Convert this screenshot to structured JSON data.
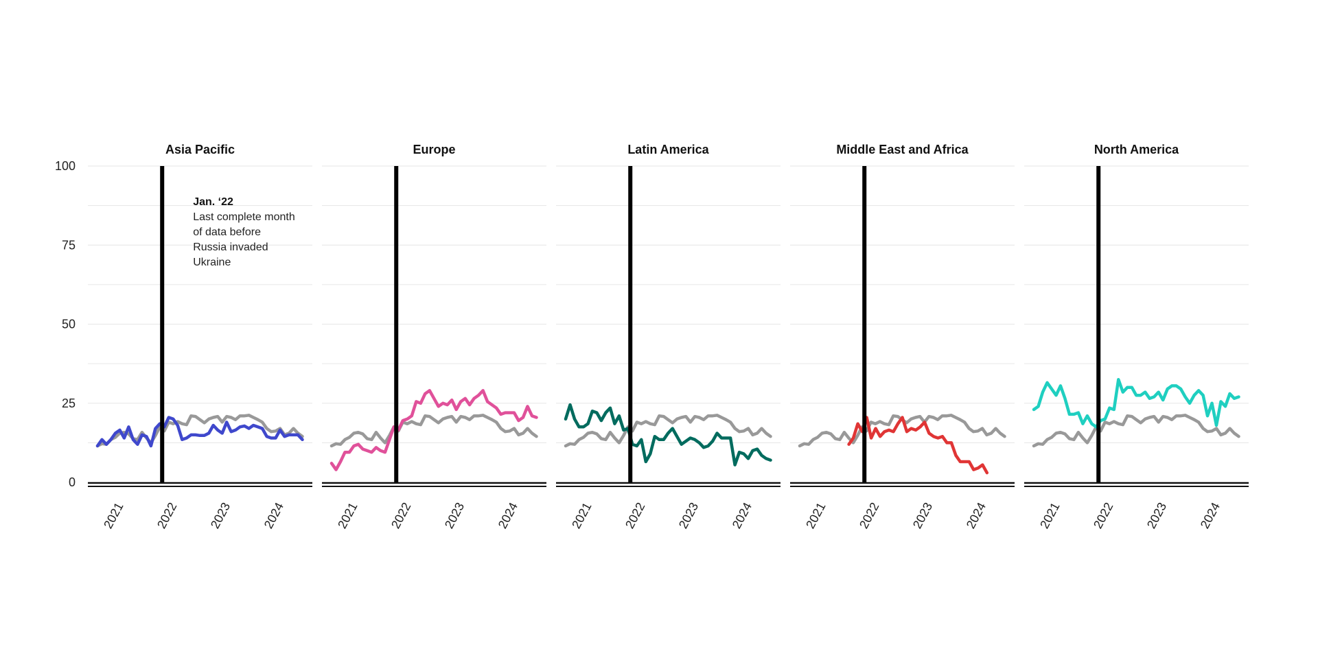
{
  "chart_data": {
    "type": "line",
    "ylim": [
      0,
      100
    ],
    "yticks": [
      0,
      25,
      50,
      75,
      100
    ],
    "xlim": [
      2020.65,
      2024.85
    ],
    "xticks": [
      2021,
      2022,
      2023,
      2024
    ],
    "xtick_labels": [
      "2021",
      "2022",
      "2023",
      "2024"
    ],
    "marker_x": 2022.04,
    "annotation": {
      "title": "Jan. ‘22",
      "lines": [
        "Last complete month",
        "of data before",
        "Russia invaded",
        "Ukraine"
      ]
    },
    "global_series": {
      "color": "#999999",
      "x_start": 2020.83,
      "step_months": 1,
      "values": [
        11.5,
        12.2,
        12.0,
        13.5,
        14.2,
        15.5,
        15.8,
        15.3,
        13.8,
        13.5,
        15.8,
        14.0,
        12.5,
        14.8,
        17.5,
        16.2,
        19.0,
        18.5,
        19.2,
        18.5,
        18.2,
        21.0,
        20.8,
        19.8,
        18.8,
        20.0,
        20.5,
        20.8,
        19.0,
        20.8,
        20.5,
        19.8,
        21.0,
        21.0,
        21.2,
        20.5,
        19.8,
        19.0,
        17.0,
        16.0,
        16.2,
        17.0,
        15.0,
        15.5,
        17.0,
        15.5,
        14.5
      ]
    },
    "panels": [
      {
        "title": "Asia Pacific",
        "color": "#3f48cc",
        "x_start": 2020.83,
        "step_months": 1,
        "values": [
          11.5,
          13.5,
          12.0,
          13.5,
          15.5,
          16.5,
          14.0,
          17.5,
          13.5,
          12.0,
          15.0,
          14.5,
          11.5,
          17.0,
          18.5,
          17.5,
          20.5,
          20.0,
          18.0,
          13.5,
          14.0,
          15.0,
          15.0,
          14.8,
          14.8,
          15.5,
          18.0,
          16.5,
          15.5,
          19.0,
          16.0,
          16.5,
          17.5,
          17.8,
          17.0,
          18.0,
          17.5,
          17.0,
          14.5,
          14.0,
          14.0,
          16.5,
          14.5,
          15.0,
          15.0,
          15.0,
          13.5
        ]
      },
      {
        "title": "Europe",
        "color": "#e0519a",
        "x_start": 2020.83,
        "step_months": 1,
        "values": [
          6.0,
          4.0,
          6.5,
          9.5,
          9.5,
          11.5,
          12.0,
          10.5,
          10.0,
          9.5,
          11.0,
          10.0,
          9.5,
          13.5,
          17.5,
          16.5,
          19.5,
          20.0,
          21.0,
          25.5,
          25.0,
          28.0,
          29.0,
          26.5,
          24.0,
          25.0,
          24.5,
          26.0,
          23.0,
          25.5,
          26.5,
          24.5,
          26.5,
          27.5,
          29.0,
          25.5,
          24.5,
          23.5,
          21.5,
          22.0,
          22.0,
          22.0,
          19.5,
          20.5,
          24.0,
          21.0,
          20.5
        ]
      },
      {
        "title": "Latin America",
        "color": "#006b5e",
        "x_start": 2020.83,
        "step_months": 1,
        "values": [
          20.0,
          24.5,
          20.0,
          17.5,
          17.5,
          18.5,
          22.5,
          22.0,
          19.5,
          22.0,
          23.5,
          18.5,
          21.0,
          16.5,
          17.0,
          12.0,
          11.5,
          13.5,
          6.5,
          9.0,
          14.5,
          13.5,
          13.5,
          15.5,
          17.0,
          14.5,
          12.0,
          13.0,
          14.0,
          13.5,
          12.5,
          11.0,
          11.5,
          13.0,
          15.5,
          14.0,
          14.0,
          14.0,
          5.5,
          9.5,
          9.0,
          7.5,
          10.0,
          10.5,
          8.5,
          7.5,
          7.0
        ]
      },
      {
        "title": "Middle East and Africa",
        "color": "#e03535",
        "x_start": 2021.75,
        "step_months": 1,
        "values": [
          12.0,
          14.0,
          18.5,
          16.0,
          20.5,
          14.0,
          17.0,
          14.5,
          16.0,
          16.5,
          16.0,
          18.5,
          20.5,
          16.0,
          17.0,
          16.5,
          17.5,
          19.0,
          15.5,
          14.5,
          14.0,
          14.5,
          12.5,
          12.5,
          8.5,
          6.5,
          6.5,
          6.5,
          4.0,
          4.5,
          5.5,
          3.0
        ]
      },
      {
        "title": "North America",
        "color": "#1fcfc0",
        "x_start": 2020.83,
        "step_months": 1,
        "values": [
          23.0,
          24.0,
          28.5,
          31.5,
          29.5,
          27.5,
          30.5,
          26.5,
          21.5,
          21.5,
          22.0,
          18.5,
          21.0,
          18.5,
          17.5,
          19.5,
          20.0,
          23.5,
          23.0,
          32.5,
          28.5,
          30.0,
          30.0,
          27.5,
          27.5,
          28.5,
          26.5,
          27.0,
          28.5,
          26.0,
          29.5,
          30.5,
          30.5,
          29.5,
          27.0,
          25.0,
          27.5,
          29.0,
          27.5,
          21.0,
          25.0,
          18.0,
          25.5,
          24.0,
          28.0,
          26.5,
          27.0
        ]
      }
    ]
  }
}
